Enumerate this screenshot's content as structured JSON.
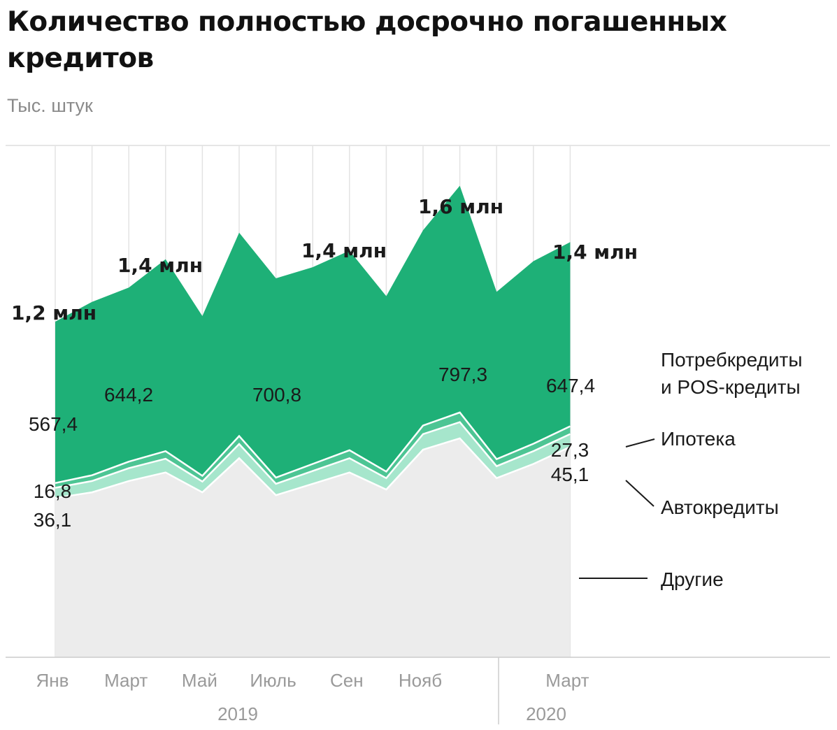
{
  "title": "Количество полностью досрочно погашенных кредитов",
  "subtitle": "Тыс. штук",
  "chart_data": {
    "type": "area",
    "stacked": true,
    "unit": "Тыс. штук",
    "x_ticks": [
      "Янв",
      "Март",
      "Май",
      "Июль",
      "Сен",
      "Нояб",
      "Март"
    ],
    "years": [
      "2019",
      "2020"
    ],
    "ylim": [
      0,
      1800
    ],
    "series": [
      {
        "name": "Другие",
        "color": "#ececec",
        "values": [
          560,
          580,
          620,
          650,
          580,
          700,
          570,
          610,
          650,
          590,
          730,
          770,
          630,
          680,
          740
        ]
      },
      {
        "name": "Автокредиты",
        "color": "#a6e6cc",
        "values": [
          36.1,
          40,
          45,
          48,
          38,
          50,
          40,
          45,
          50,
          40,
          55,
          57,
          42,
          45,
          45.1
        ]
      },
      {
        "name": "Ипотека",
        "color": "#4dc594",
        "values": [
          16.8,
          20,
          23,
          27,
          20,
          28,
          22,
          25,
          28,
          23,
          30,
          34,
          25,
          26,
          27.3
        ]
      },
      {
        "name": "Потребкредиты и POS-кредиты",
        "color": "#1eb077",
        "values": [
          567.4,
          610,
          612,
          675,
          562,
          715,
          700.8,
          692,
          702,
          617,
          687,
          797.3,
          588,
          642,
          647.4
        ]
      }
    ],
    "value_labels": [
      "567,4",
      "644,2",
      "700,8",
      "797,3",
      "647,4",
      "16,8",
      "36,1",
      "27,3",
      "45,1"
    ],
    "total_labels": [
      "1,2 млн",
      "1,4 млн",
      "1,4 млн",
      "1,6 млн",
      "1,4 млн"
    ],
    "legend": {
      "consumer_line1": "Потребкредиты",
      "consumer_line2": "и POS-кредиты",
      "mortgage": "Ипотека",
      "auto": "Автокредиты",
      "other": "Другие"
    }
  }
}
